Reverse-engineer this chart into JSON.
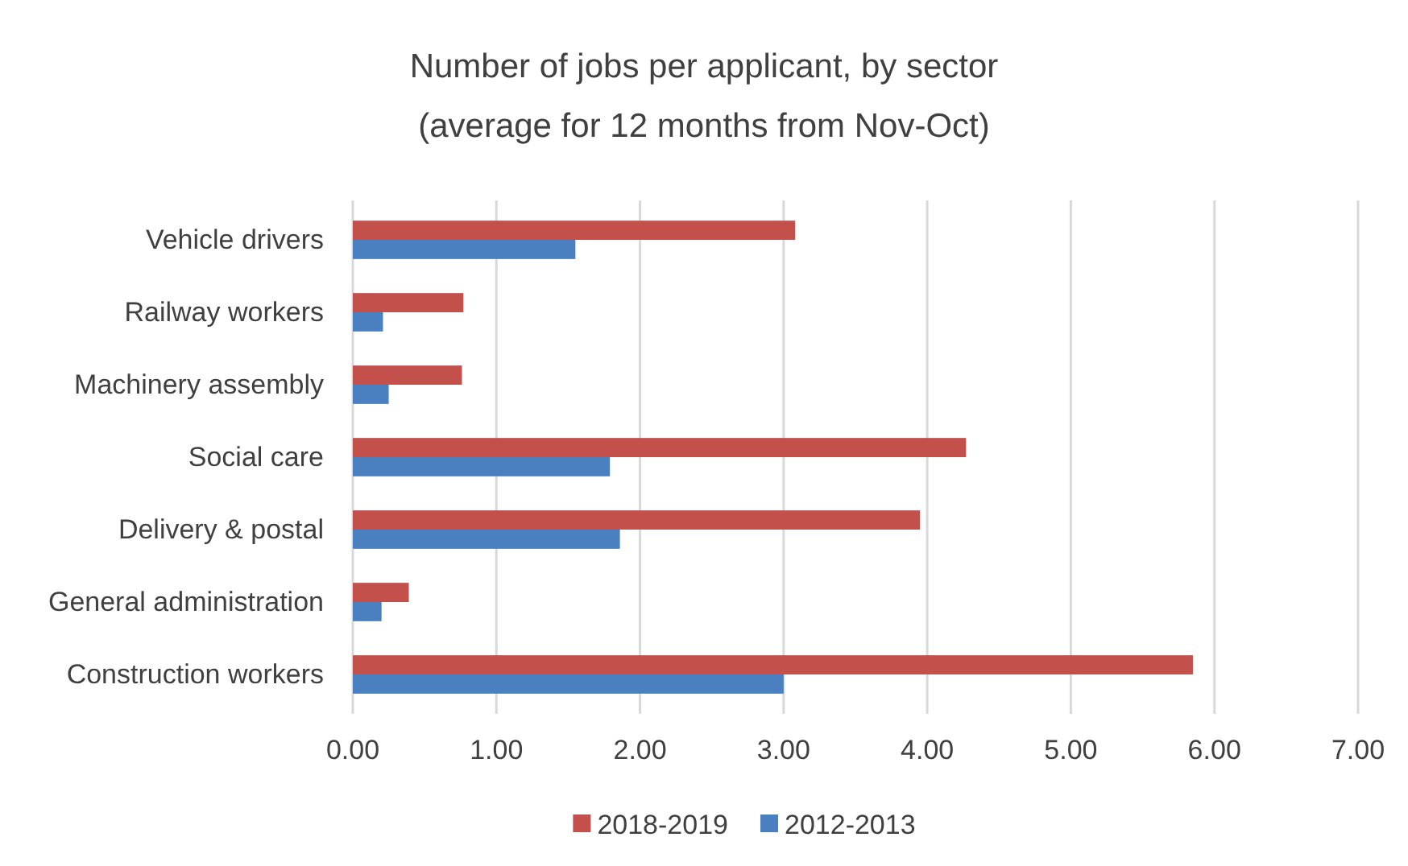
{
  "chart_data": {
    "type": "bar",
    "orientation": "horizontal",
    "title": "Number of jobs per applicant, by sector",
    "subtitle": "(average for 12 months from Nov-Oct)",
    "categories": [
      "Vehicle drivers",
      "Railway workers",
      "Machinery assembly",
      "Social care",
      "Delivery & postal",
      "General administration",
      "Construction workers"
    ],
    "series": [
      {
        "name": "2018-2019",
        "color": "#c4504c",
        "values": [
          3.08,
          0.77,
          0.76,
          4.27,
          3.95,
          0.39,
          5.85
        ]
      },
      {
        "name": "2012-2013",
        "color": "#4a80c0",
        "values": [
          1.55,
          0.21,
          0.25,
          1.79,
          1.86,
          0.2,
          3.0
        ]
      }
    ],
    "xlim": [
      0,
      7
    ],
    "xticks": [
      {
        "value": 0,
        "label": "0.00"
      },
      {
        "value": 1,
        "label": "1.00"
      },
      {
        "value": 2,
        "label": "2.00"
      },
      {
        "value": 3,
        "label": "3.00"
      },
      {
        "value": 4,
        "label": "4.00"
      },
      {
        "value": 5,
        "label": "5.00"
      },
      {
        "value": 6,
        "label": "6.00"
      },
      {
        "value": 7,
        "label": "7.00"
      }
    ],
    "grid": "x",
    "legend": "bottom"
  }
}
